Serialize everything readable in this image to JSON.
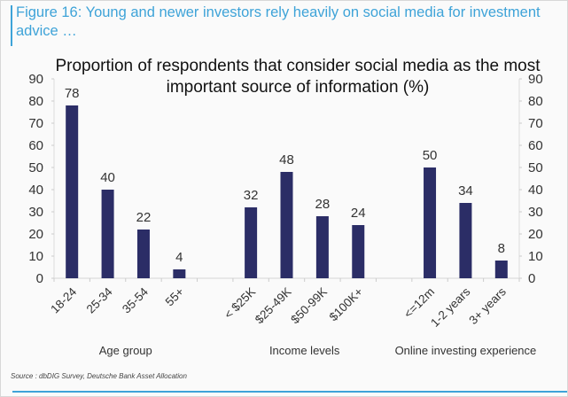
{
  "figure": {
    "title": "Figure 16: Young and newer investors rely heavily on social media for investment advice …",
    "source": "Source : dbDIG Survey, Deutsche Bank Asset Allocation",
    "accent_color": "#3ea3d8"
  },
  "chart_data": {
    "type": "bar",
    "title_line1": "Proportion of respondents that consider social media as the most",
    "title_line2": "important source of information (%)",
    "bar_color": "#2b2d66",
    "ylim": [
      0,
      90
    ],
    "yticks": [
      0,
      10,
      20,
      30,
      40,
      50,
      60,
      70,
      80,
      90
    ],
    "secondary_yaxis": true,
    "grid": false,
    "legend": "none",
    "groups": [
      {
        "name": "Age group",
        "categories": [
          "18-24",
          "25-34",
          "35-54",
          "55+"
        ],
        "values": [
          78,
          40,
          22,
          4
        ]
      },
      {
        "name": "Income levels",
        "categories": [
          "< $25K",
          "$25-49K",
          "$50-99K",
          "$100K+"
        ],
        "values": [
          32,
          48,
          28,
          24
        ]
      },
      {
        "name": "Online investing experience",
        "categories": [
          "<=12m",
          "1-2 years",
          "3+ years"
        ],
        "values": [
          50,
          34,
          8
        ]
      }
    ]
  }
}
